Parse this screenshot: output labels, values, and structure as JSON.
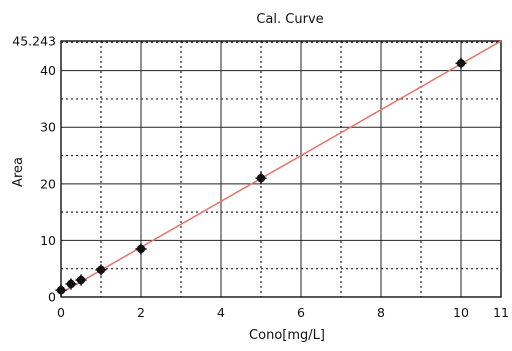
{
  "chart_data": {
    "type": "scatter",
    "title": "Cal. Curve",
    "xlabel": "Cono[mg/L]",
    "ylabel": "Area",
    "xlim": [
      0,
      11
    ],
    "ylim": [
      0,
      45.243
    ],
    "x_ticks": [
      "0",
      "2",
      "4",
      "6",
      "8",
      "10",
      "11"
    ],
    "y_ticks": [
      "0",
      "10",
      "20",
      "30",
      "40",
      "45.243"
    ],
    "grid": true,
    "points": {
      "x": [
        0,
        0.25,
        0.5,
        1,
        2,
        5,
        10
      ],
      "y": [
        1.2,
        2.3,
        3.0,
        4.8,
        8.5,
        21.0,
        41.3
      ]
    },
    "fit_line": {
      "x": [
        0,
        11
      ],
      "y": [
        0.7,
        45.243
      ]
    },
    "colors": {
      "points": "#111111",
      "fit_line": "#e8736a",
      "grid": "#222222"
    }
  }
}
